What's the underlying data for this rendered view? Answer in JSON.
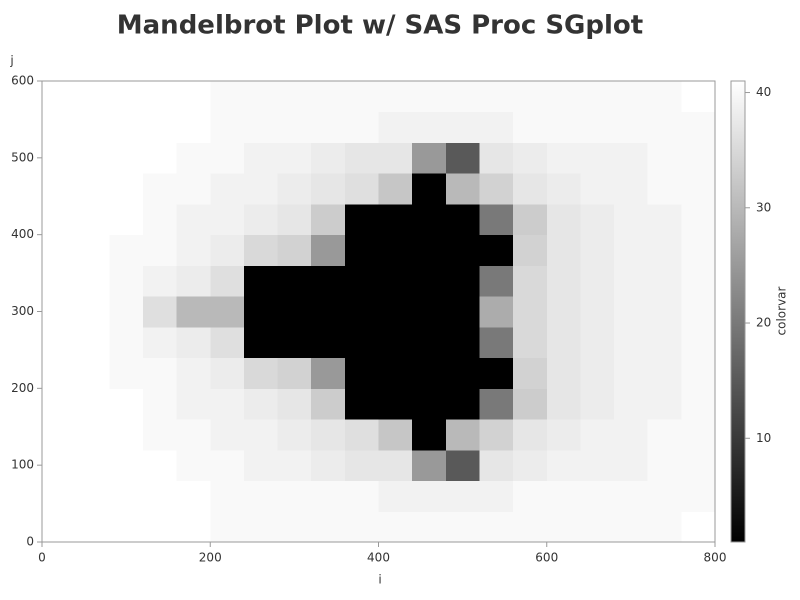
{
  "chart_data": {
    "type": "heatmap",
    "title": "Mandelbrot Plot w/ SAS Proc SGplot",
    "x_label": "i",
    "y_label": "j",
    "colorbar_label": "colorvar",
    "x": [
      20,
      60,
      100,
      140,
      180,
      220,
      260,
      300,
      340,
      380,
      420,
      460,
      500,
      540,
      580,
      620,
      660,
      700,
      740,
      780
    ],
    "y": [
      20,
      60,
      100,
      140,
      180,
      220,
      260,
      300,
      340,
      380,
      420,
      460,
      500,
      540,
      580
    ],
    "values": [
      [
        41,
        41,
        41,
        41,
        41,
        40,
        40,
        40,
        40,
        40,
        40,
        40,
        40,
        40,
        40,
        40,
        40,
        40,
        40,
        41
      ],
      [
        41,
        41,
        41,
        41,
        41,
        40,
        40,
        40,
        40,
        40,
        39,
        39,
        39,
        39,
        40,
        40,
        40,
        40,
        40,
        40
      ],
      [
        41,
        41,
        41,
        41,
        40,
        40,
        39,
        39,
        38,
        37,
        37,
        25,
        15,
        37,
        38,
        39,
        39,
        39,
        40,
        40
      ],
      [
        41,
        41,
        41,
        40,
        40,
        39,
        39,
        38,
        37,
        36,
        32,
        1,
        30,
        34,
        37,
        38,
        39,
        39,
        40,
        40
      ],
      [
        41,
        41,
        41,
        40,
        39,
        39,
        38,
        37,
        33,
        1,
        1,
        1,
        1,
        20,
        33,
        37,
        38,
        39,
        39,
        40
      ],
      [
        41,
        41,
        40,
        40,
        39,
        38,
        35,
        34,
        25,
        1,
        1,
        1,
        1,
        1,
        34,
        37,
        38,
        39,
        39,
        40
      ],
      [
        41,
        41,
        40,
        39,
        38,
        36,
        1,
        1,
        1,
        1,
        1,
        1,
        1,
        20,
        35,
        37,
        38,
        39,
        39,
        40
      ],
      [
        41,
        41,
        40,
        36,
        30,
        30,
        1,
        1,
        1,
        1,
        1,
        1,
        1,
        28,
        35,
        37,
        38,
        39,
        39,
        40
      ],
      [
        41,
        41,
        40,
        39,
        38,
        36,
        1,
        1,
        1,
        1,
        1,
        1,
        1,
        20,
        35,
        37,
        38,
        39,
        39,
        40
      ],
      [
        41,
        41,
        40,
        40,
        39,
        38,
        35,
        34,
        25,
        1,
        1,
        1,
        1,
        1,
        34,
        37,
        38,
        39,
        39,
        40
      ],
      [
        41,
        41,
        41,
        40,
        39,
        39,
        38,
        37,
        33,
        1,
        1,
        1,
        1,
        20,
        33,
        37,
        38,
        39,
        39,
        40
      ],
      [
        41,
        41,
        41,
        40,
        40,
        39,
        39,
        38,
        37,
        36,
        32,
        1,
        30,
        34,
        37,
        38,
        39,
        39,
        40,
        40
      ],
      [
        41,
        41,
        41,
        41,
        40,
        40,
        39,
        39,
        38,
        37,
        37,
        25,
        15,
        37,
        38,
        39,
        39,
        39,
        40,
        40
      ],
      [
        41,
        41,
        41,
        41,
        41,
        40,
        40,
        40,
        40,
        40,
        39,
        39,
        39,
        39,
        40,
        40,
        40,
        40,
        40,
        40
      ],
      [
        41,
        41,
        41,
        41,
        41,
        40,
        40,
        40,
        40,
        40,
        40,
        40,
        40,
        40,
        40,
        40,
        40,
        40,
        40,
        41
      ]
    ],
    "xlim": [
      0,
      800
    ],
    "xticks": [
      0,
      200,
      400,
      600,
      800
    ],
    "ylim": [
      0,
      600
    ],
    "yticks": [
      0,
      100,
      200,
      300,
      400,
      500,
      600
    ],
    "colorlim": [
      1,
      41
    ],
    "colorticks": [
      10,
      20,
      30,
      40
    ],
    "colorscale": [
      "#000000",
      "#ffffff"
    ]
  }
}
